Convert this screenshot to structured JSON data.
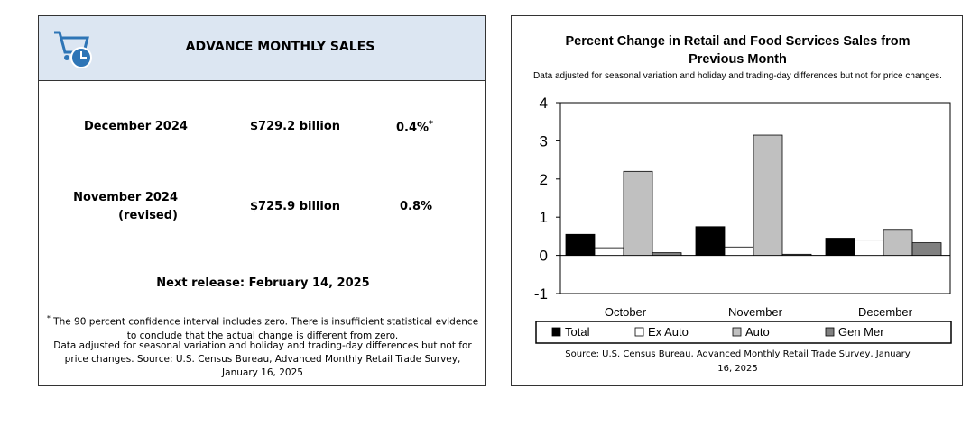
{
  "summary": {
    "title": "ADVANCE MONTHLY SALES",
    "rows": [
      {
        "label": "December 2024",
        "amount": "$729.2 billion",
        "change": "0.4%",
        "note": "*"
      },
      {
        "label": "November 2024",
        "sublabel": "(revised)",
        "amount": "$725.9 billion",
        "change": "0.8%"
      }
    ],
    "next_release": "Next release: February 14, 2025",
    "footnote_marker": "*",
    "footnote": "The 90 percent confidence interval includes zero. There is insufficient statistical evidence to conclude that the actual change is different from zero.",
    "notes": "Data adjusted for seasonal variation and holiday and trading-day differences but not for price changes. Source: U.S. Census Bureau, Advanced Monthly Retail Trade Survey, January 16, 2025"
  },
  "chart_data": {
    "type": "bar",
    "title": "Percent Change in Retail and Food Services Sales from Previous Month",
    "subtitle": "Data adjusted for seasonal variation and holiday and trading-day differences but not for price changes.",
    "source": "Source: U.S. Census Bureau, Advanced Monthly Retail Trade Survey, January 16, 2025",
    "categories": [
      "October",
      "November",
      "December"
    ],
    "series": [
      {
        "name": "Total",
        "color": "#000000",
        "values": [
          0.55,
          0.75,
          0.45
        ]
      },
      {
        "name": "Ex Auto",
        "color": "#ffffff",
        "values": [
          0.2,
          0.22,
          0.4
        ]
      },
      {
        "name": "Auto",
        "color": "#c0c0c0",
        "values": [
          2.2,
          3.15,
          0.68
        ]
      },
      {
        "name": "Gen Mer",
        "color": "#808080",
        "values": [
          0.07,
          0.03,
          0.33
        ]
      }
    ],
    "ylim": [
      -1,
      4
    ],
    "yticks": [
      -1,
      0,
      1,
      2,
      3,
      4
    ],
    "grid": false,
    "legend": "bottom"
  }
}
